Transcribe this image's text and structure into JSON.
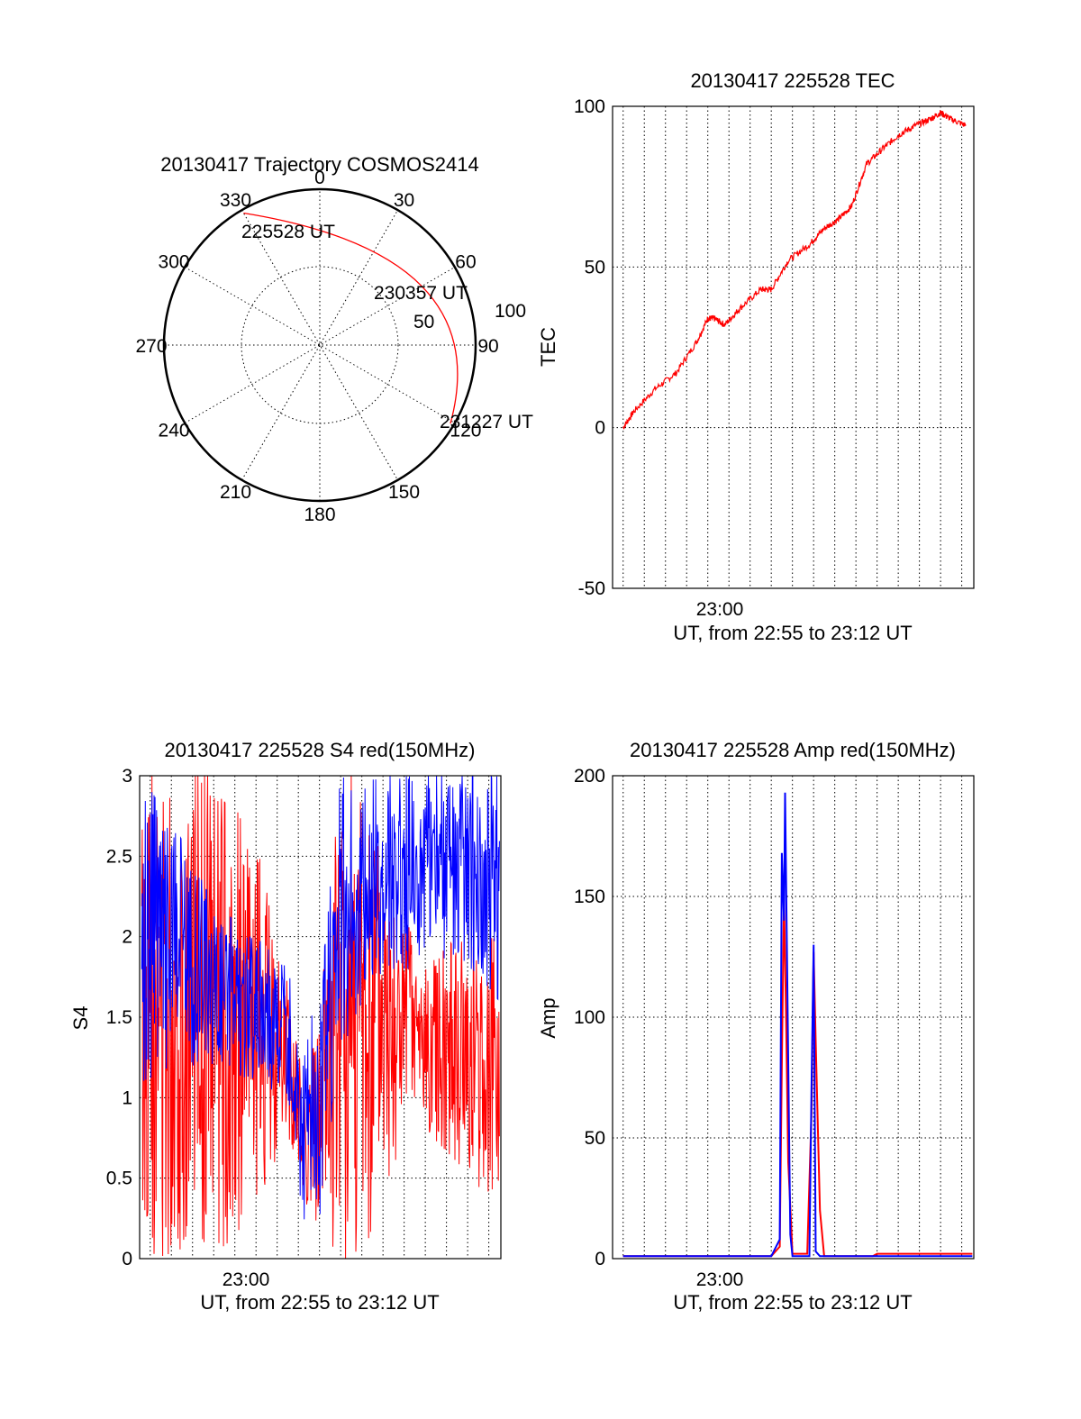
{
  "colors": {
    "red": "#ff0000",
    "blue": "#0000ff",
    "axis": "#000000"
  },
  "polar": {
    "title": "20130417 Trajectory COSMOS2414",
    "azimuth_labels": [
      "0",
      "30",
      "60",
      "90",
      "120",
      "150",
      "180",
      "210",
      "240",
      "270",
      "300",
      "330"
    ],
    "radial_labels": [
      "50",
      "100"
    ],
    "trajectory": {
      "start": {
        "label": "225528 UT",
        "azimuth_deg": 330,
        "zenith_deg": 88
      },
      "mid": {
        "label": "230357 UT",
        "azimuth_deg": 60,
        "zenith_deg": 68
      },
      "end": {
        "label": "231227 UT",
        "azimuth_deg": 121,
        "zenith_deg": 88
      }
    }
  },
  "chart_data": [
    {
      "type": "line",
      "title": "20130417 225528 TEC",
      "xlabel": "UT, from 22:55 to 23:12 UT",
      "ylabel": "TEC",
      "x_range_min": [
        -4.5,
        12.57
      ],
      "ylim": [
        -50,
        100
      ],
      "yticks": [
        "100",
        "50",
        "0",
        "-50"
      ],
      "xticks": [
        "23:00"
      ],
      "series": [
        {
          "color": "red",
          "points": [
            [
              -4.0,
              0
            ],
            [
              -3.5,
              5
            ],
            [
              -2.5,
              12
            ],
            [
              -1.5,
              17
            ],
            [
              -0.5,
              27
            ],
            [
              0,
              34
            ],
            [
              0.3,
              34
            ],
            [
              0.8,
              32
            ],
            [
              1.5,
              37
            ],
            [
              2.5,
              43
            ],
            [
              3.0,
              43
            ],
            [
              3.8,
              52
            ],
            [
              4.8,
              57
            ],
            [
              5.5,
              62
            ],
            [
              6.2,
              65
            ],
            [
              6.8,
              69
            ],
            [
              7.5,
              82
            ],
            [
              8.3,
              87
            ],
            [
              9.0,
              91
            ],
            [
              9.8,
              94
            ],
            [
              10.5,
              96
            ],
            [
              11.0,
              98
            ],
            [
              11.5,
              96
            ],
            [
              12.2,
              94
            ]
          ]
        }
      ]
    },
    {
      "type": "line",
      "title": "20130417 225528 S4 red(150MHz)",
      "xlabel": "UT, from 22:55 to 23:12 UT",
      "ylabel": "S4",
      "x_range_min": [
        -4.5,
        12.57
      ],
      "ylim": [
        0,
        3
      ],
      "yticks": [
        "3",
        "2.5",
        "2",
        "1.5",
        "1",
        "0.5",
        "0"
      ],
      "xticks": [
        "23:00"
      ],
      "series": [
        {
          "color": "red",
          "envelope": [
            [
              -4.4,
              0.0,
              3.0
            ],
            [
              -2.5,
              0.0,
              3.0
            ],
            [
              -1.0,
              0.0,
              3.0
            ],
            [
              1.0,
              0.3,
              2.6
            ],
            [
              2.5,
              0.8,
              1.7
            ],
            [
              3.2,
              0.25,
              1.2
            ],
            [
              4.0,
              0.2,
              1.5
            ],
            [
              5.0,
              0.0,
              3.0
            ],
            [
              6.0,
              0.0,
              3.0
            ],
            [
              7.5,
              0.6,
              2.3
            ],
            [
              9.0,
              0.8,
              1.8
            ],
            [
              10.5,
              0.6,
              2.0
            ],
            [
              12.5,
              0.3,
              2.0
            ]
          ]
        },
        {
          "color": "blue",
          "envelope": [
            [
              -4.4,
              1.1,
              3.0
            ],
            [
              -2.5,
              1.2,
              2.6
            ],
            [
              -1.0,
              1.2,
              2.2
            ],
            [
              1.0,
              1.1,
              2.0
            ],
            [
              2.5,
              1.0,
              1.8
            ],
            [
              3.2,
              0.2,
              1.4
            ],
            [
              4.0,
              0.25,
              1.6
            ],
            [
              5.0,
              1.3,
              3.0
            ],
            [
              7.0,
              1.8,
              3.0
            ],
            [
              9.0,
              1.8,
              3.0
            ],
            [
              10.5,
              1.9,
              3.0
            ],
            [
              12.5,
              1.6,
              3.0
            ]
          ]
        }
      ]
    },
    {
      "type": "line",
      "title": "20130417 225528 Amp red(150MHz)",
      "xlabel": "UT, from 22:55 to 23:12 UT",
      "ylabel": "Amp",
      "x_range_min": [
        -4.5,
        12.57
      ],
      "ylim": [
        0,
        200
      ],
      "yticks": [
        "200",
        "150",
        "100",
        "50",
        "0"
      ],
      "xticks": [
        "23:00"
      ],
      "series": [
        {
          "color": "red",
          "points": [
            [
              -4.0,
              1
            ],
            [
              3.0,
              1
            ],
            [
              3.4,
              5
            ],
            [
              3.5,
              80
            ],
            [
              3.6,
              150
            ],
            [
              3.7,
              100
            ],
            [
              3.8,
              40
            ],
            [
              4.0,
              2
            ],
            [
              4.7,
              2
            ],
            [
              4.9,
              60
            ],
            [
              5.0,
              127
            ],
            [
              5.1,
              90
            ],
            [
              5.3,
              20
            ],
            [
              5.5,
              1
            ],
            [
              7.8,
              1
            ],
            [
              8.0,
              2
            ],
            [
              12.5,
              2
            ]
          ]
        },
        {
          "color": "blue",
          "points": [
            [
              -4.0,
              1
            ],
            [
              3.0,
              1
            ],
            [
              3.4,
              8
            ],
            [
              3.5,
              168
            ],
            [
              3.6,
              140
            ],
            [
              3.65,
              193
            ],
            [
              3.75,
              120
            ],
            [
              3.9,
              10
            ],
            [
              4.0,
              1
            ],
            [
              4.8,
              1
            ],
            [
              4.9,
              70
            ],
            [
              5.0,
              130
            ],
            [
              5.1,
              3
            ],
            [
              5.3,
              1
            ],
            [
              12.5,
              1
            ]
          ]
        }
      ]
    }
  ]
}
